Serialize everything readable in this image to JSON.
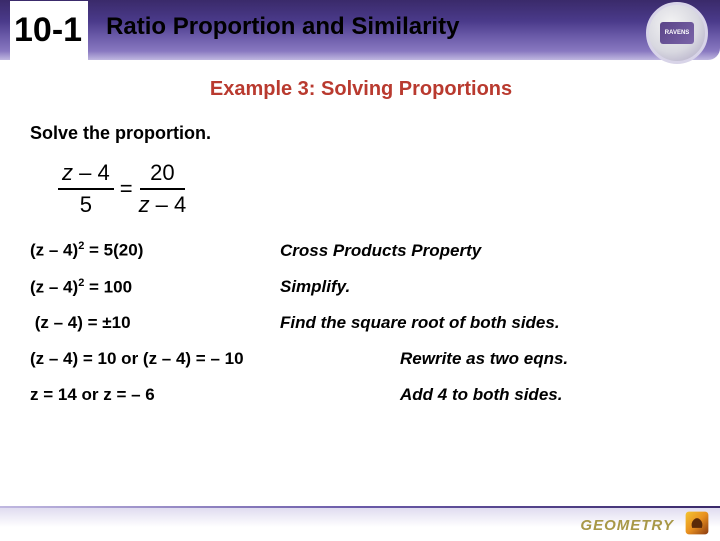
{
  "header": {
    "section": "10-1",
    "title": "Ratio Proportion and Similarity",
    "logo_text": "RAVENS"
  },
  "example": {
    "title": "Example 3: Solving Proportions",
    "prompt": "Solve the proportion."
  },
  "equation": {
    "num1_a": "z",
    "num1_b": " – 4",
    "den1": "5",
    "num2": "20",
    "den2_a": "z",
    "den2_b": " – 4",
    "eq": "="
  },
  "steps": [
    {
      "left_html": "(z – 4)<span class='sup'>2</span> = 5(20)",
      "right": "Cross Products Property"
    },
    {
      "left_html": "(z – 4)<span class='sup'>2</span> = 100",
      "right": "Simplify."
    },
    {
      "left_html": "&nbsp;(z – 4) = <span class='pm'>±</span>10",
      "right": "Find the square root of both sides."
    },
    {
      "left_html": "(z – 4) = 10 or (z – 4) = – 10",
      "right": "Rewrite as two eqns.",
      "wide": true
    },
    {
      "left_html": "z = 14 or z = – 6",
      "right": "Add 4 to both sides.",
      "wide": true
    }
  ],
  "footer": {
    "label": "GEOMETRY"
  },
  "colors": {
    "title_color": "#b93a2f"
  }
}
